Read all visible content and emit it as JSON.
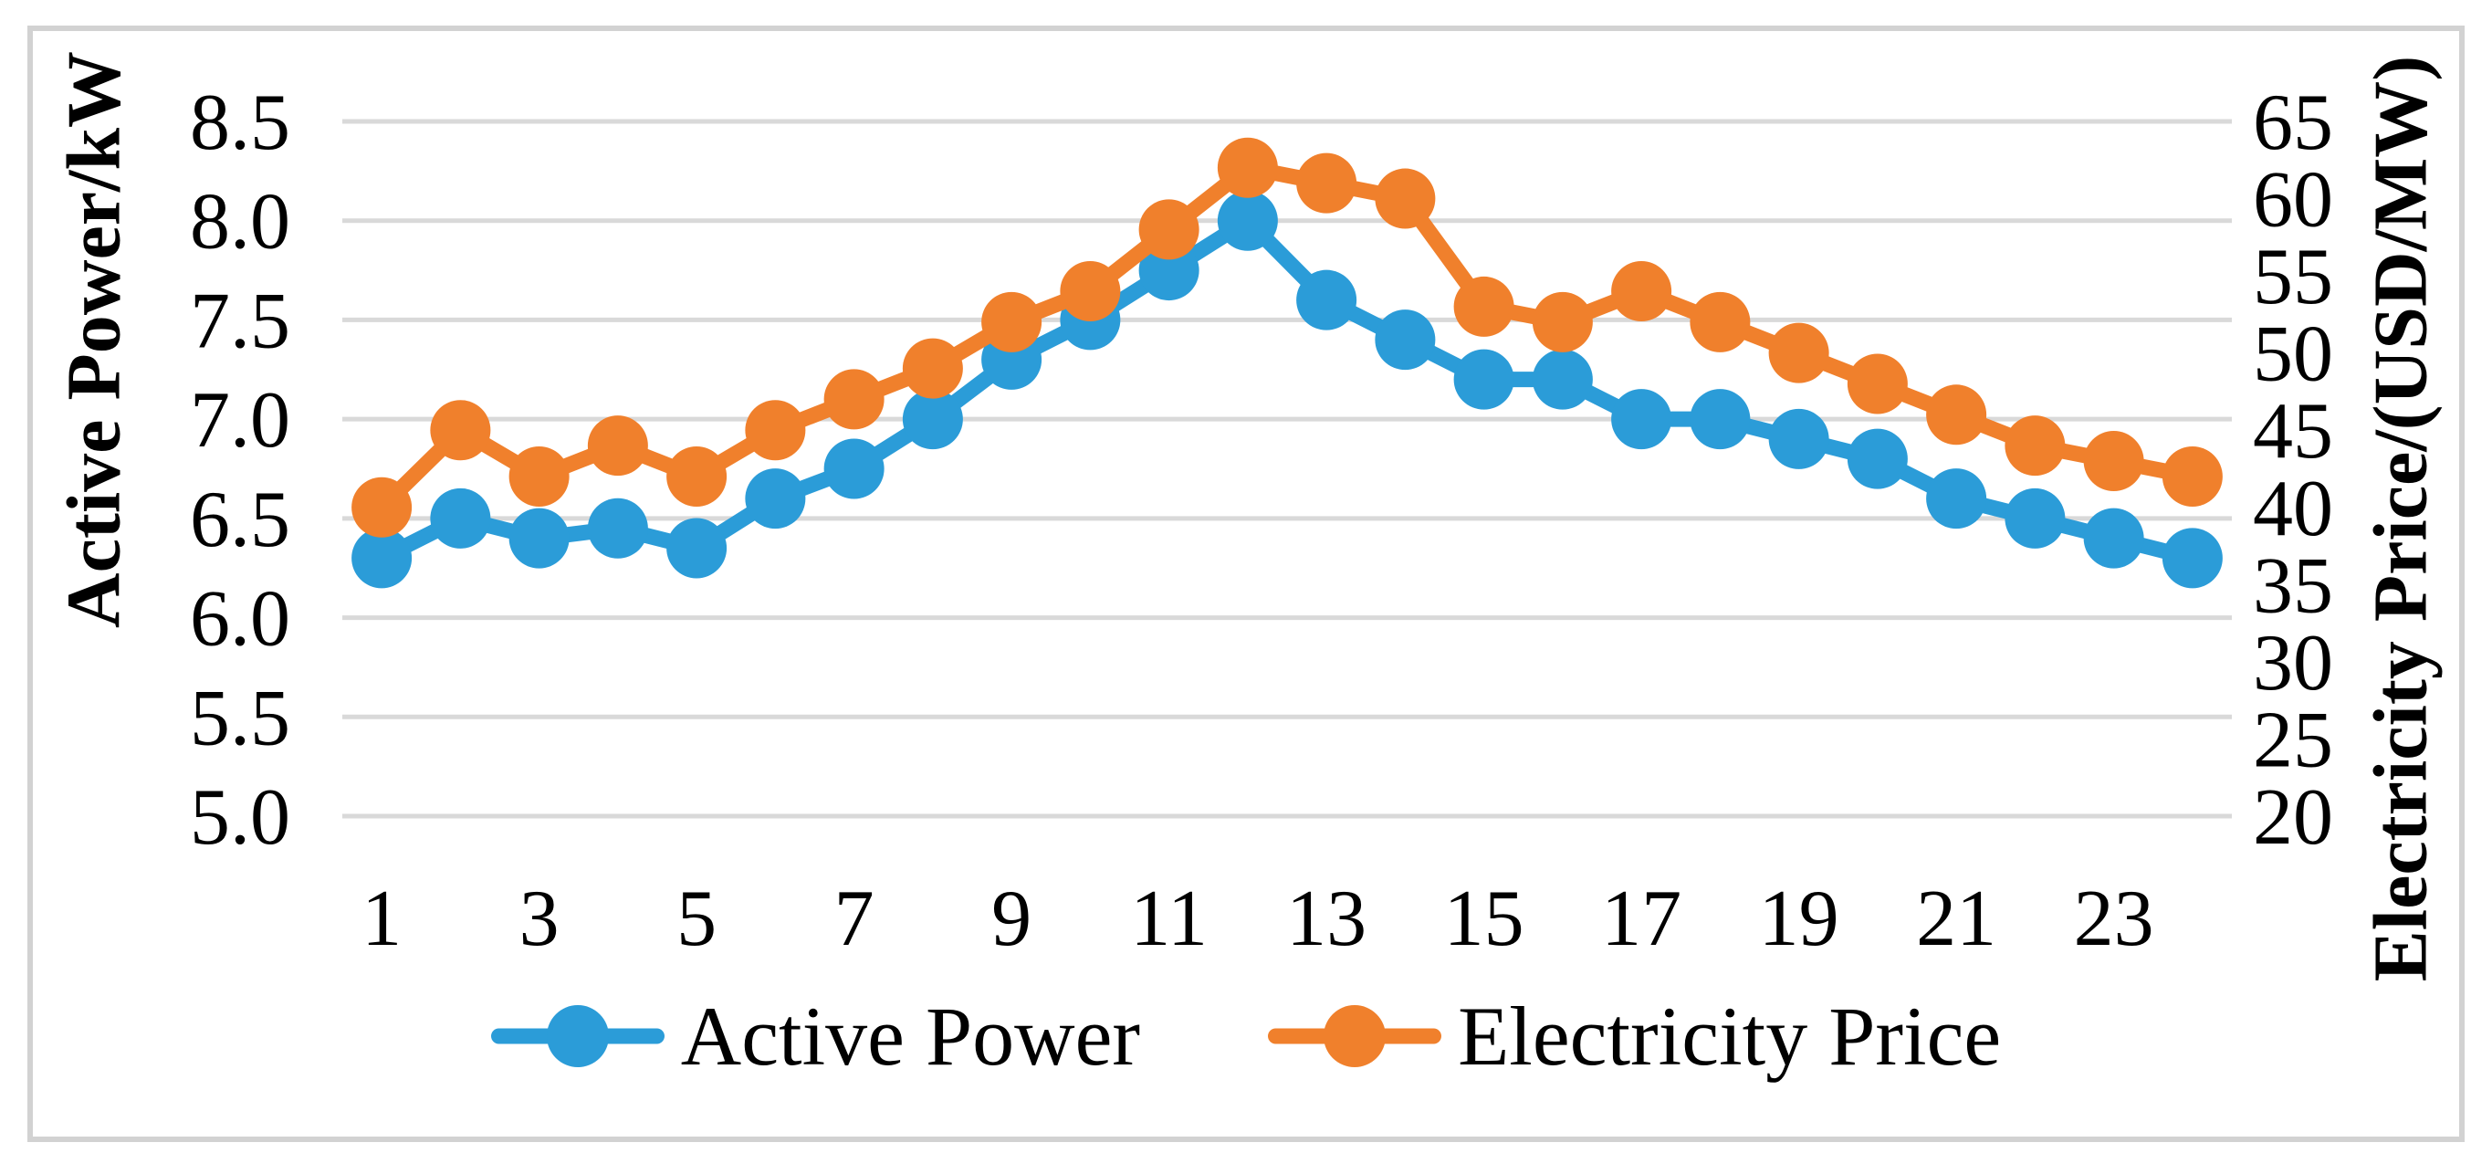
{
  "figure": {
    "background": "#ffffff",
    "border_color": "#d2d2d2",
    "gridline_color": "#d9d9d9",
    "text_color": "#000000"
  },
  "chart_data": {
    "type": "line",
    "x": [
      1,
      2,
      3,
      4,
      5,
      6,
      7,
      8,
      9,
      10,
      11,
      12,
      13,
      14,
      15,
      16,
      17,
      18,
      19,
      20,
      21,
      22,
      23,
      24
    ],
    "series": [
      {
        "name": "Active Power",
        "axis": "left",
        "color": "#2b9cd8",
        "marker": "circle",
        "values": [
          6.3,
          6.5,
          6.4,
          6.45,
          6.35,
          6.6,
          6.75,
          7.0,
          7.3,
          7.5,
          7.75,
          8.0,
          7.6,
          7.4,
          7.2,
          7.2,
          7.0,
          7.0,
          6.9,
          6.8,
          6.6,
          6.5,
          6.4,
          6.3
        ]
      },
      {
        "name": "Electricity Price",
        "axis": "right",
        "color": "#f0802c",
        "marker": "circle",
        "values": [
          40,
          45,
          42,
          44,
          42,
          45,
          47,
          49,
          52,
          54,
          58,
          62,
          61,
          60,
          53,
          52,
          54,
          52,
          50,
          48,
          46,
          44,
          43,
          42
        ]
      }
    ],
    "left_axis": {
      "label": "Active Power/kW",
      "min": 5.0,
      "max": 8.5,
      "step": 0.5,
      "tick_labels": [
        "8.5",
        "8.0",
        "7.5",
        "7.0",
        "6.5",
        "6.0",
        "5.5",
        "5.0"
      ]
    },
    "right_axis": {
      "label": "Electricity Price/(USD/MW)",
      "min": 20,
      "max": 65,
      "step": 5,
      "tick_labels": [
        "65",
        "60",
        "55",
        "50",
        "45",
        "40",
        "35",
        "30",
        "25",
        "20"
      ]
    },
    "x_axis": {
      "tick_labels": [
        "1",
        "3",
        "5",
        "7",
        "9",
        "11",
        "13",
        "15",
        "17",
        "19",
        "21",
        "23"
      ]
    },
    "grid": true,
    "legend_position": "bottom",
    "legend": [
      {
        "label": "Active Power",
        "color": "#2b9cd8"
      },
      {
        "label": "Electricity Price",
        "color": "#f0802c"
      }
    ]
  }
}
